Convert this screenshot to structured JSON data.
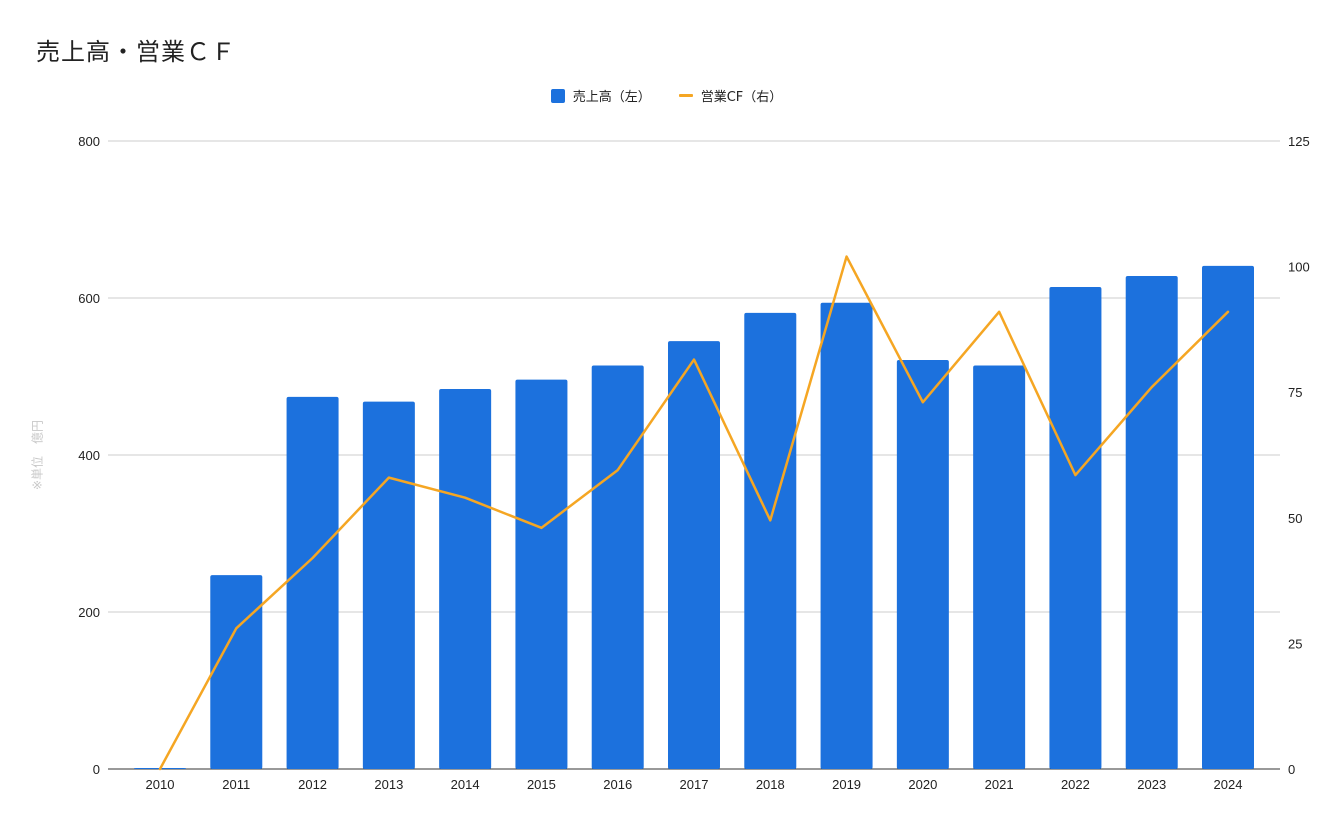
{
  "chart_data": {
    "type": "bar",
    "title": "売上高・営業ＣＦ",
    "ylabel": "※単位　億円",
    "x": [
      "2010",
      "2011",
      "2012",
      "2013",
      "2014",
      "2015",
      "2016",
      "2017",
      "2018",
      "2019",
      "2020",
      "2021",
      "2022",
      "2023",
      "2024"
    ],
    "series": [
      {
        "name": "売上高（左）",
        "type": "bar",
        "axis": "left",
        "color": "#1c71dd",
        "values": [
          0,
          247,
          474,
          468,
          484,
          496,
          514,
          545,
          581,
          594,
          521,
          514,
          614,
          628,
          641
        ]
      },
      {
        "name": "営業CF（右）",
        "type": "line",
        "axis": "right",
        "color": "#f5a623",
        "values": [
          0,
          28,
          42,
          58,
          54,
          48,
          59.5,
          81.5,
          49.5,
          102,
          73,
          91,
          58.5,
          76,
          91
        ]
      }
    ],
    "ylim_left": [
      0,
      800
    ],
    "yticks_left": [
      "0",
      "200",
      "400",
      "600",
      "800"
    ],
    "ylim_right": [
      0,
      125
    ],
    "yticks_right": [
      "0",
      "25",
      "50",
      "75",
      "100",
      "125"
    ],
    "grid": true,
    "legend_position": "top-center"
  }
}
